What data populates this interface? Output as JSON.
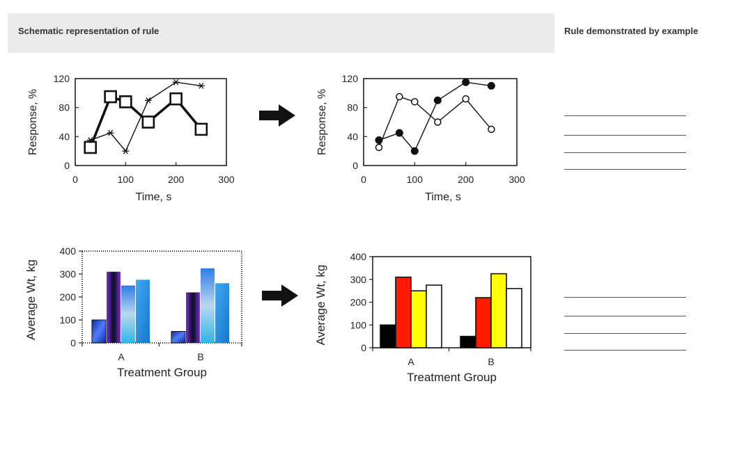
{
  "header": {
    "left_title": "Schematic representation of rule",
    "right_title": "Rule demonstrated by example"
  },
  "colors": {
    "header_bg": "#ebebeb",
    "arrow": "#111111",
    "bar_black": "#000000",
    "bar_red": "#ff1a00",
    "bar_yellow": "#ffff00",
    "bar_white": "#ffffff",
    "gradient_blue": "#1b6fd6",
    "gradient_purple": "#9a3fe6",
    "gradient_cyan": "#2fb6e8"
  },
  "chart_data": [
    {
      "id": "line-before",
      "type": "line",
      "style": "cluttered",
      "xlabel": "Time, s",
      "ylabel": "Response, %",
      "xlim": [
        0,
        300
      ],
      "ylim": [
        0,
        120
      ],
      "xticks": [
        "0",
        "100",
        "200",
        "300"
      ],
      "yticks": [
        "0",
        "40",
        "80",
        "120"
      ],
      "series": [
        {
          "name": "asterisks",
          "marker": "asterisk",
          "x": [
            30,
            70,
            100,
            145,
            200,
            250
          ],
          "y": [
            35,
            45,
            20,
            90,
            115,
            110
          ]
        },
        {
          "name": "open squares",
          "marker": "square",
          "x": [
            30,
            70,
            100,
            145,
            200,
            250
          ],
          "y": [
            25,
            95,
            88,
            60,
            92,
            50
          ]
        }
      ]
    },
    {
      "id": "line-after",
      "type": "line",
      "style": "clean",
      "xlabel": "Time, s",
      "ylabel": "Response, %",
      "xlim": [
        0,
        300
      ],
      "ylim": [
        0,
        120
      ],
      "xticks": [
        "0",
        "100",
        "200",
        "300"
      ],
      "yticks": [
        "0",
        "40",
        "80",
        "120"
      ],
      "series": [
        {
          "name": "filled circles",
          "marker": "filled-circle",
          "x": [
            30,
            70,
            100,
            145,
            200,
            250
          ],
          "y": [
            35,
            45,
            20,
            90,
            115,
            110
          ]
        },
        {
          "name": "open circles",
          "marker": "open-circle",
          "x": [
            30,
            70,
            100,
            145,
            200,
            250
          ],
          "y": [
            25,
            95,
            88,
            60,
            92,
            50
          ]
        }
      ]
    },
    {
      "id": "bar-before",
      "type": "bar",
      "style": "cluttered",
      "xlabel": "Treatment Group",
      "ylabel": "Average Wt, kg",
      "ylim": [
        0,
        400
      ],
      "yticks": [
        "0",
        "100",
        "200",
        "300",
        "400"
      ],
      "categories": [
        "A",
        "B"
      ],
      "series": [
        {
          "name": "s1",
          "values": [
            100,
            50
          ]
        },
        {
          "name": "s2",
          "values": [
            310,
            220
          ]
        },
        {
          "name": "s3",
          "values": [
            250,
            325
          ]
        },
        {
          "name": "s4",
          "values": [
            275,
            260
          ]
        }
      ]
    },
    {
      "id": "bar-after",
      "type": "bar",
      "style": "clean",
      "xlabel": "Treatment Group",
      "ylabel": "Average Wt, kg",
      "ylim": [
        0,
        400
      ],
      "yticks": [
        "0",
        "100",
        "200",
        "300",
        "400"
      ],
      "categories": [
        "A",
        "B"
      ],
      "series": [
        {
          "name": "s1",
          "values": [
            100,
            50
          ]
        },
        {
          "name": "s2",
          "values": [
            310,
            220
          ]
        },
        {
          "name": "s3",
          "values": [
            250,
            325
          ]
        },
        {
          "name": "s4",
          "values": [
            275,
            260
          ]
        }
      ]
    }
  ]
}
